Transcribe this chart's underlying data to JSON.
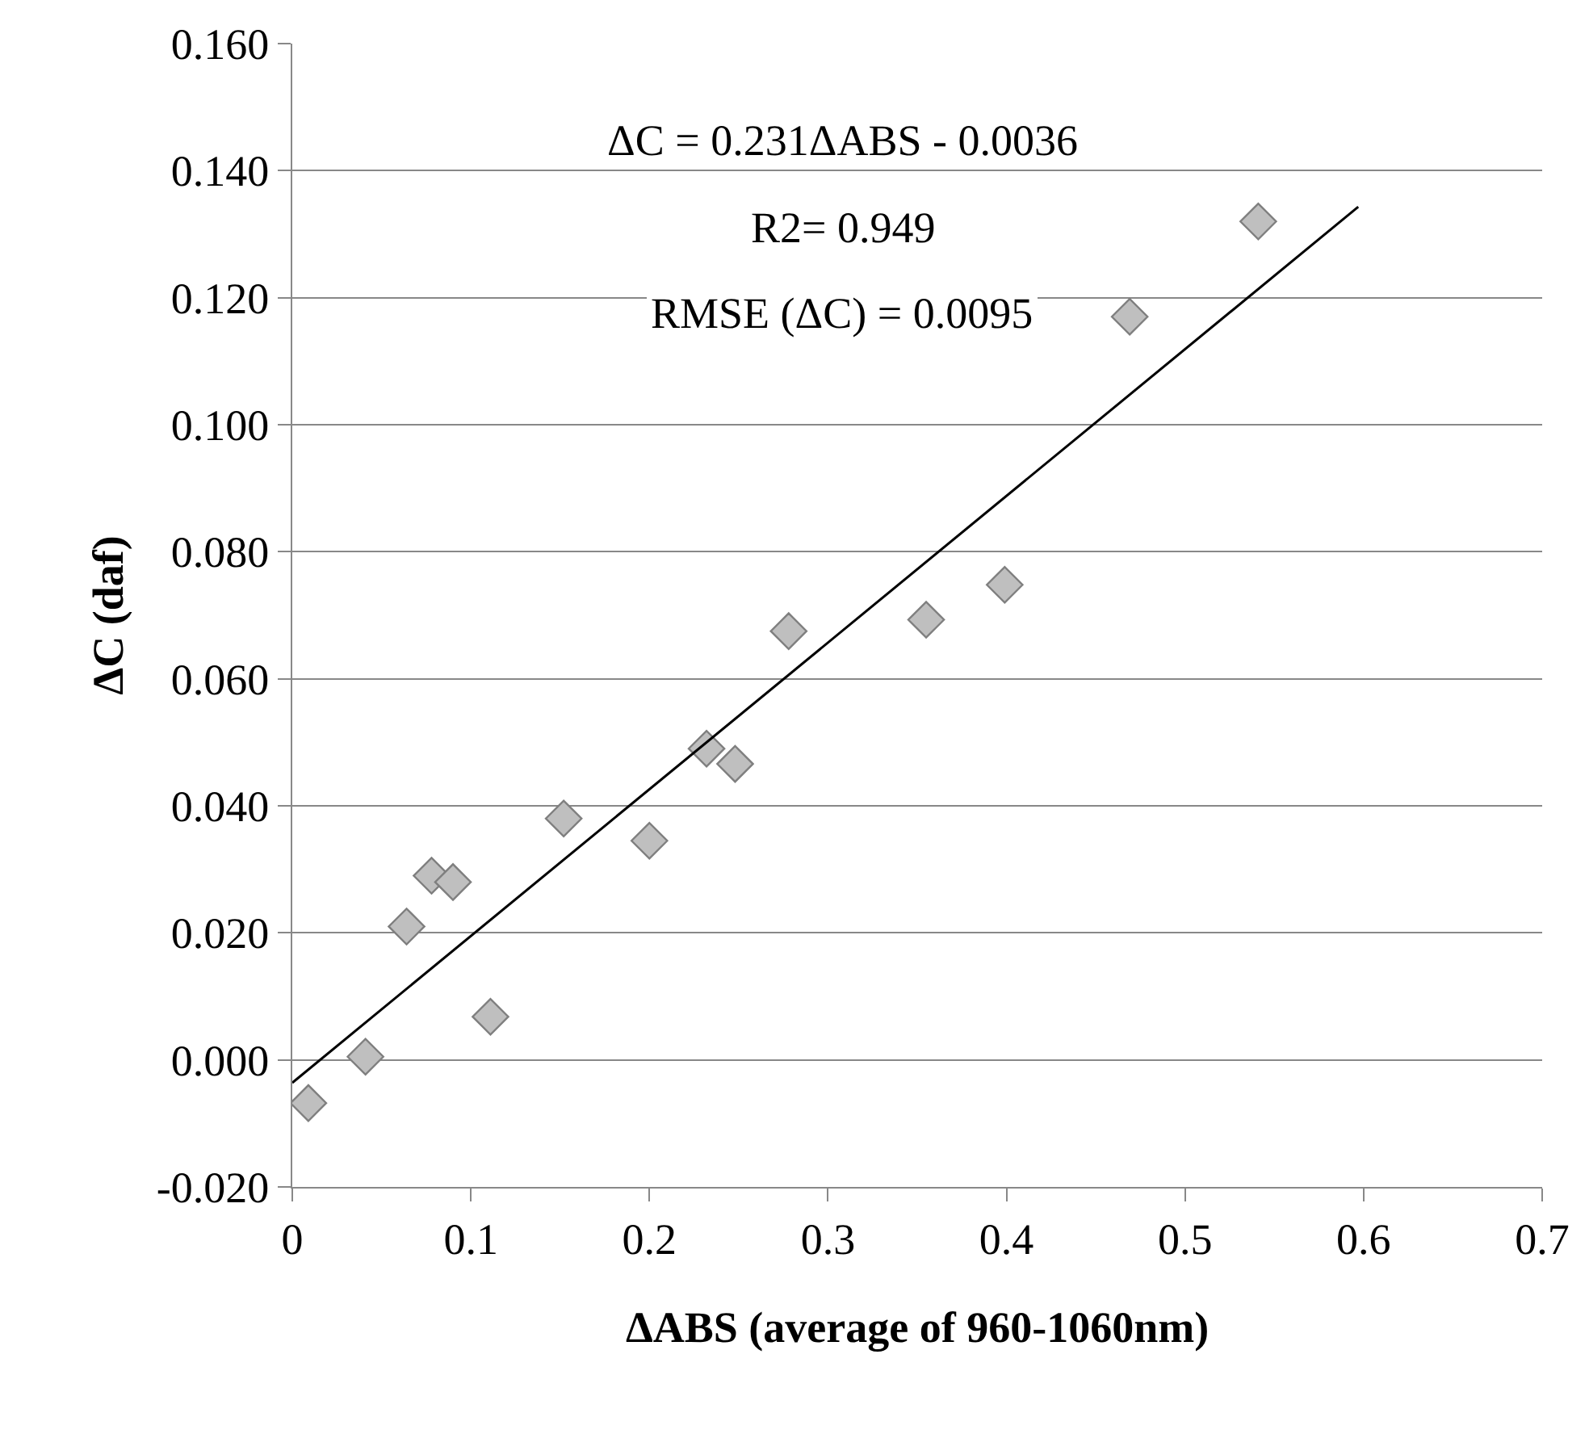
{
  "chart_data": {
    "type": "scatter",
    "xlabel": "ΔABS (average of 960-1060nm)",
    "ylabel": "ΔC (daf)",
    "annotations": [
      "ΔC = 0.231ΔABS - 0.0036",
      "R2= 0.949",
      "RMSE (ΔC) = 0.0095"
    ],
    "series": [
      {
        "color": "#bfbfbf",
        "marker": "diamond",
        "x": [
          0.009,
          0.041,
          0.064,
          0.078,
          0.09,
          0.111,
          0.152,
          0.2,
          0.232,
          0.248,
          0.278,
          0.355,
          0.399,
          0.469,
          0.541
        ],
        "values": [
          -0.0068,
          0.0005,
          0.021,
          0.029,
          0.028,
          0.0068,
          0.038,
          0.0345,
          0.049,
          0.0466,
          0.0675,
          0.0693,
          0.0748,
          0.117,
          0.132
        ]
      },
      {
        "type": "line",
        "color": "#000000",
        "marker": "none",
        "x": [
          0,
          0.597
        ],
        "values": [
          -0.0036,
          0.1343
        ]
      }
    ],
    "xlim": [
      0,
      0.7
    ],
    "xticks": [
      0,
      0.1,
      0.2,
      0.3,
      0.4,
      0.5,
      0.6,
      0.7
    ],
    "ylim": [
      -0.02,
      0.16
    ],
    "yticks": [
      {
        "value": -0.02,
        "label": "-0.020"
      },
      {
        "value": 0,
        "label": "0.000"
      },
      {
        "value": 0.02,
        "label": "0.020"
      },
      {
        "value": 0.04,
        "label": "0.040"
      },
      {
        "value": 0.06,
        "label": "0.060"
      },
      {
        "value": 0.08,
        "label": "0.080"
      },
      {
        "value": 0.1,
        "label": "0.100"
      },
      {
        "value": 0.12,
        "label": "0.120"
      },
      {
        "value": 0.14,
        "label": "0.140"
      },
      {
        "value": 0.16,
        "label": "0.160"
      }
    ],
    "grid": "y"
  }
}
